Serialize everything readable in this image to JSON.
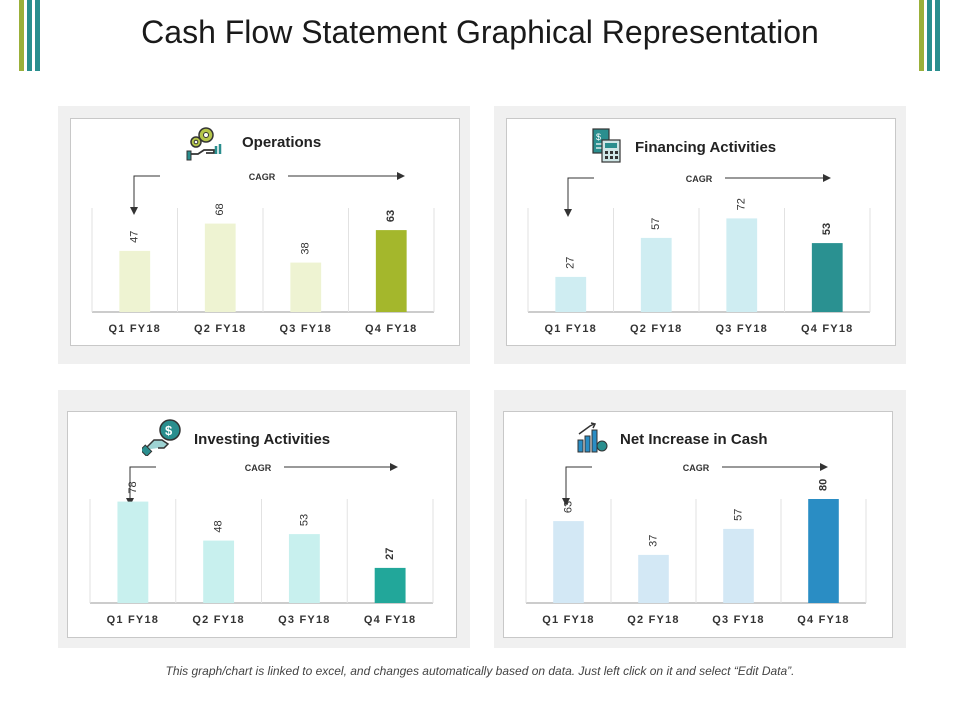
{
  "page": {
    "title": "Cash Flow Statement Graphical Representation",
    "footer": "This graph/chart is linked to excel, and changes automatically based on data. Just left click on it and select “Edit Data”."
  },
  "colors": {
    "deco_left": [
      "#9bb03a",
      "#2a8e8e",
      "#2a8e8e"
    ],
    "deco_right": [
      "#9bb03a",
      "#2a8e8e",
      "#2a8e8e"
    ]
  },
  "chart_data": [
    {
      "type": "bar",
      "title": "Operations",
      "icon": "gears-hand-icon",
      "annotation": "CAGR",
      "categories": [
        "Q1 FY18",
        "Q2 FY18",
        "Q3 FY18",
        "Q4 FY18"
      ],
      "values": [
        47,
        68,
        38,
        63
      ],
      "bar_colors": [
        "#eef3d2",
        "#eef3d2",
        "#eef3d2",
        "#a4b72c"
      ],
      "highlight_index": 3,
      "grid": false,
      "legend": "none"
    },
    {
      "type": "bar",
      "title": "Financing Activities",
      "icon": "calculator-document-icon",
      "annotation": "CAGR",
      "categories": [
        "Q1 FY18",
        "Q2 FY18",
        "Q3 FY18",
        "Q4 FY18"
      ],
      "values": [
        27,
        57,
        72,
        53
      ],
      "bar_colors": [
        "#cfedf2",
        "#cfedf2",
        "#cfedf2",
        "#2a9191"
      ],
      "highlight_index": 3,
      "grid": false,
      "legend": "none"
    },
    {
      "type": "bar",
      "title": "Investing Activities",
      "icon": "money-hand-icon",
      "annotation": "CAGR",
      "categories": [
        "Q1 FY18",
        "Q2 FY18",
        "Q3 FY18",
        "Q4 FY18"
      ],
      "values": [
        78,
        48,
        53,
        27
      ],
      "bar_colors": [
        "#c8f0ee",
        "#c8f0ee",
        "#c8f0ee",
        "#22a79a"
      ],
      "highlight_index": 3,
      "grid": false,
      "legend": "none"
    },
    {
      "type": "bar",
      "title": "Net Increase in Cash",
      "icon": "growth-chart-icon",
      "annotation": "CAGR",
      "categories": [
        "Q1 FY18",
        "Q2 FY18",
        "Q3 FY18",
        "Q4 FY18"
      ],
      "values": [
        63,
        37,
        57,
        80
      ],
      "bar_colors": [
        "#d3e8f5",
        "#d3e8f5",
        "#d3e8f5",
        "#2a8dc4"
      ],
      "highlight_index": 3,
      "grid": false,
      "legend": "none"
    }
  ]
}
